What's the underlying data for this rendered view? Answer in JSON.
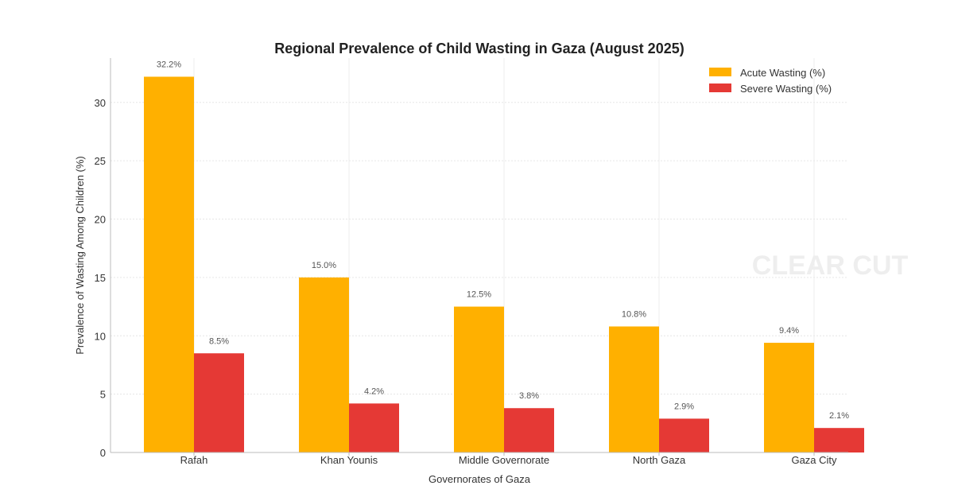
{
  "chart_data": {
    "type": "bar",
    "title": "Regional Prevalence of Child Wasting in Gaza (August 2025)",
    "xlabel": "Governorates of Gaza",
    "ylabel": "Prevalence of Wasting Among Children (%)",
    "categories": [
      "Rafah",
      "Khan Younis",
      "Middle Governorate",
      "North Gaza",
      "Gaza City"
    ],
    "series": [
      {
        "name": "Acute Wasting (%)",
        "values": [
          32.2,
          15.0,
          12.5,
          10.8,
          9.4
        ],
        "color": "#FFB000"
      },
      {
        "name": "Severe Wasting (%)",
        "values": [
          8.5,
          4.2,
          3.8,
          2.9,
          2.1
        ],
        "color": "#E53935"
      }
    ],
    "data_labels": [
      [
        "32.2%",
        "15.0%",
        "12.5%",
        "10.8%",
        "9.4%"
      ],
      [
        "8.5%",
        "4.2%",
        "3.8%",
        "2.9%",
        "2.1%"
      ]
    ],
    "yticks": [
      0,
      5,
      10,
      15,
      20,
      25,
      30
    ],
    "ylim": [
      0,
      33.8
    ],
    "grid": true,
    "legend_position": "top-right",
    "watermark": "CLEAR CUT"
  }
}
